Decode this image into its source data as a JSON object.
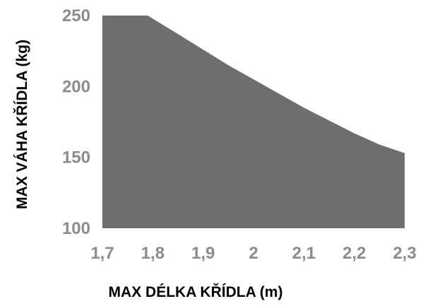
{
  "chart_data": {
    "type": "area",
    "title": "",
    "xlabel": "MAX DÉLKA KŘÍDLA (m)",
    "ylabel": "MAX VÁHA KŘÍDLA (kg)",
    "xlim": [
      1.7,
      2.3
    ],
    "ylim": [
      100,
      250
    ],
    "x_ticks": [
      "1,7",
      "1,8",
      "1,9",
      "2",
      "2,1",
      "2,2",
      "2,3"
    ],
    "y_ticks": [
      "100",
      "150",
      "200",
      "250"
    ],
    "x": [
      1.7,
      1.79,
      1.85,
      1.9,
      1.95,
      2.0,
      2.05,
      2.1,
      2.15,
      2.2,
      2.25,
      2.3
    ],
    "series": [
      {
        "values": [
          250,
          250,
          237,
          226,
          215,
          205,
          195,
          185,
          176,
          167,
          159,
          153
        ]
      }
    ],
    "fill_color": "#6e6e70",
    "tick_color": "#8c8c8c",
    "grid": false,
    "legend": "none"
  }
}
